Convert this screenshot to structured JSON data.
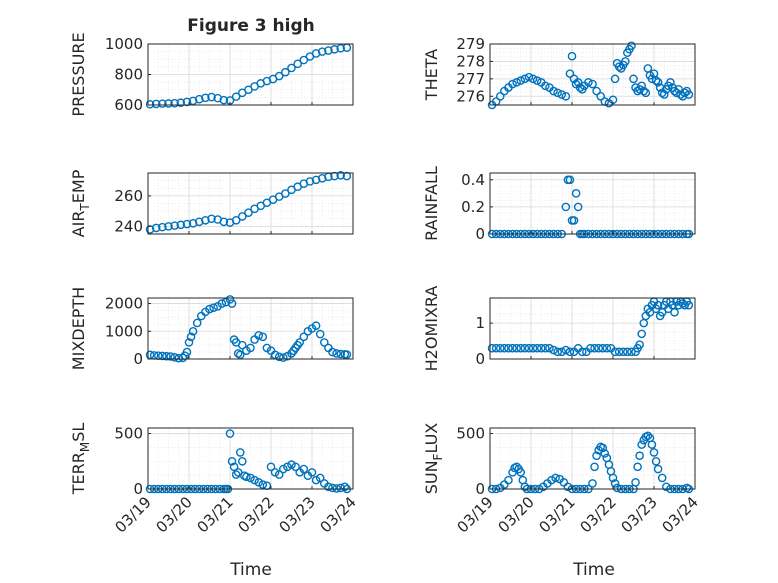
{
  "figure_title": "Figure 3 high",
  "x_axis_label": "Time",
  "x_tick_labels": [
    "03/19",
    "03/20",
    "03/21",
    "03/22",
    "03/23",
    "03/24"
  ],
  "marker_color": "#0072BD",
  "chart_data": [
    {
      "type": "scatter",
      "ylabel": "PRESSURE",
      "title": "Figure 3 high",
      "xlabel": "",
      "xlim": [
        0,
        5
      ],
      "ylim": [
        600,
        1000
      ],
      "yticks": [
        600,
        800,
        1000
      ],
      "grid": true,
      "x": [
        0.05,
        0.2,
        0.35,
        0.5,
        0.65,
        0.8,
        0.95,
        1.1,
        1.25,
        1.4,
        1.55,
        1.7,
        1.85,
        2.0,
        2.15,
        2.3,
        2.45,
        2.6,
        2.75,
        2.9,
        3.05,
        3.2,
        3.35,
        3.5,
        3.65,
        3.8,
        3.95,
        4.1,
        4.25,
        4.4,
        4.55,
        4.7,
        4.85
      ],
      "y": [
        605,
        607,
        609,
        610,
        612,
        615,
        620,
        627,
        638,
        647,
        652,
        645,
        632,
        630,
        655,
        680,
        700,
        722,
        742,
        757,
        770,
        790,
        815,
        843,
        870,
        895,
        918,
        938,
        950,
        957,
        965,
        972,
        976
      ]
    },
    {
      "type": "scatter",
      "ylabel": "THETA",
      "title": "",
      "xlabel": "",
      "xlim": [
        0,
        5
      ],
      "ylim": [
        275.5,
        279
      ],
      "yticks": [
        276,
        277,
        278,
        279
      ],
      "grid": true,
      "x": [
        0.05,
        0.15,
        0.25,
        0.35,
        0.45,
        0.55,
        0.65,
        0.75,
        0.85,
        0.95,
        1.05,
        1.15,
        1.25,
        1.35,
        1.45,
        1.55,
        1.65,
        1.75,
        1.85,
        1.95,
        2.0,
        2.05,
        2.1,
        2.15,
        2.2,
        2.25,
        2.3,
        2.4,
        2.5,
        2.6,
        2.7,
        2.8,
        2.9,
        3.0,
        3.05,
        3.1,
        3.15,
        3.2,
        3.25,
        3.3,
        3.35,
        3.4,
        3.45,
        3.5,
        3.55,
        3.6,
        3.65,
        3.7,
        3.75,
        3.8,
        3.85,
        3.9,
        3.95,
        4.0,
        4.05,
        4.1,
        4.15,
        4.2,
        4.25,
        4.3,
        4.35,
        4.4,
        4.45,
        4.5,
        4.55,
        4.6,
        4.65,
        4.7,
        4.75,
        4.8,
        4.85
      ],
      "y": [
        275.5,
        275.7,
        276.0,
        276.3,
        276.5,
        276.7,
        276.8,
        276.9,
        277.0,
        277.1,
        277.0,
        276.9,
        276.8,
        276.6,
        276.5,
        276.3,
        276.2,
        276.1,
        276.0,
        277.3,
        278.3,
        277.0,
        276.7,
        276.8,
        276.5,
        276.4,
        276.6,
        276.8,
        276.7,
        276.3,
        276.0,
        275.7,
        275.6,
        275.8,
        277.0,
        277.9,
        277.7,
        277.6,
        277.8,
        278.0,
        278.5,
        278.7,
        278.9,
        277.0,
        276.5,
        276.3,
        276.4,
        276.6,
        276.3,
        276.2,
        277.6,
        277.2,
        277.0,
        277.3,
        276.9,
        276.8,
        276.5,
        276.2,
        276.1,
        276.4,
        276.6,
        276.8,
        276.5,
        276.3,
        276.2,
        276.4,
        276.1,
        276.0,
        276.2,
        276.3,
        276.1
      ]
    },
    {
      "type": "scatter",
      "ylabel": "AIR_TEMP",
      "title": "",
      "xlabel": "",
      "xlim": [
        0,
        5
      ],
      "ylim": [
        235,
        275
      ],
      "yticks": [
        240,
        260
      ],
      "grid": true,
      "x": [
        0.05,
        0.2,
        0.35,
        0.5,
        0.65,
        0.8,
        0.95,
        1.1,
        1.25,
        1.4,
        1.55,
        1.7,
        1.85,
        2.0,
        2.15,
        2.3,
        2.45,
        2.6,
        2.75,
        2.9,
        3.05,
        3.2,
        3.35,
        3.5,
        3.65,
        3.8,
        3.95,
        4.1,
        4.25,
        4.4,
        4.55,
        4.7,
        4.85
      ],
      "y": [
        238,
        239,
        239.5,
        240,
        240.5,
        241,
        241.5,
        242,
        243,
        244,
        245,
        244.5,
        243,
        242.5,
        244,
        246.5,
        249,
        251.5,
        253.5,
        255.5,
        257.5,
        259.5,
        261.5,
        264,
        266,
        268,
        269.5,
        270.5,
        271.5,
        272.5,
        273,
        273.5,
        273
      ]
    },
    {
      "type": "scatter",
      "ylabel": "RAINFALL",
      "title": "",
      "xlabel": "",
      "xlim": [
        0,
        5
      ],
      "ylim": [
        0,
        0.45
      ],
      "yticks": [
        0,
        0.2,
        0.4
      ],
      "grid": true,
      "x": [
        0.05,
        0.15,
        0.25,
        0.35,
        0.45,
        0.55,
        0.65,
        0.75,
        0.85,
        0.95,
        1.05,
        1.15,
        1.25,
        1.35,
        1.45,
        1.55,
        1.65,
        1.75,
        1.85,
        1.9,
        1.95,
        2.0,
        2.05,
        2.1,
        2.15,
        2.2,
        2.25,
        2.3,
        2.4,
        2.5,
        2.6,
        2.7,
        2.8,
        2.9,
        3.0,
        3.1,
        3.2,
        3.3,
        3.4,
        3.5,
        3.6,
        3.7,
        3.8,
        3.9,
        4.0,
        4.1,
        4.2,
        4.3,
        4.4,
        4.5,
        4.6,
        4.7,
        4.8,
        4.85
      ],
      "y": [
        0,
        0,
        0,
        0,
        0,
        0,
        0,
        0,
        0,
        0,
        0,
        0,
        0,
        0,
        0,
        0,
        0,
        0,
        0.2,
        0.4,
        0.4,
        0.1,
        0.1,
        0.3,
        0.2,
        0,
        0,
        0,
        0,
        0,
        0,
        0,
        0,
        0,
        0,
        0,
        0,
        0,
        0,
        0,
        0,
        0,
        0,
        0,
        0,
        0,
        0,
        0,
        0,
        0,
        0,
        0,
        0,
        0
      ]
    },
    {
      "type": "scatter",
      "ylabel": "MIXDEPTH",
      "title": "",
      "xlabel": "",
      "xlim": [
        0,
        5
      ],
      "ylim": [
        0,
        2200
      ],
      "yticks": [
        0,
        1000,
        2000
      ],
      "grid": true,
      "x": [
        0.05,
        0.15,
        0.25,
        0.35,
        0.45,
        0.55,
        0.65,
        0.75,
        0.85,
        0.9,
        0.95,
        1.0,
        1.05,
        1.1,
        1.2,
        1.3,
        1.4,
        1.5,
        1.6,
        1.7,
        1.8,
        1.9,
        2.0,
        2.05,
        2.1,
        2.15,
        2.2,
        2.25,
        2.3,
        2.4,
        2.5,
        2.6,
        2.7,
        2.8,
        2.9,
        3.0,
        3.1,
        3.2,
        3.3,
        3.4,
        3.5,
        3.55,
        3.6,
        3.65,
        3.7,
        3.8,
        3.9,
        4.0,
        4.1,
        4.2,
        4.3,
        4.4,
        4.5,
        4.6,
        4.7,
        4.8,
        4.85
      ],
      "y": [
        150,
        130,
        120,
        110,
        100,
        90,
        60,
        30,
        40,
        120,
        250,
        600,
        800,
        1000,
        1300,
        1550,
        1700,
        1800,
        1850,
        1900,
        2000,
        2050,
        2150,
        2000,
        700,
        600,
        200,
        150,
        500,
        300,
        400,
        700,
        850,
        800,
        400,
        300,
        150,
        80,
        50,
        100,
        200,
        300,
        400,
        500,
        600,
        800,
        1000,
        1100,
        1200,
        900,
        600,
        400,
        250,
        200,
        180,
        170,
        160
      ]
    },
    {
      "type": "scatter",
      "ylabel": "H2OMIXRA",
      "title": "",
      "xlabel": "",
      "xlim": [
        0,
        5
      ],
      "ylim": [
        0,
        1.7
      ],
      "yticks": [
        0,
        1
      ],
      "grid": true,
      "x": [
        0.05,
        0.15,
        0.25,
        0.35,
        0.45,
        0.55,
        0.65,
        0.75,
        0.85,
        0.95,
        1.05,
        1.15,
        1.25,
        1.35,
        1.45,
        1.55,
        1.65,
        1.75,
        1.85,
        1.95,
        2.05,
        2.15,
        2.25,
        2.35,
        2.45,
        2.55,
        2.65,
        2.75,
        2.85,
        2.95,
        3.05,
        3.15,
        3.25,
        3.35,
        3.45,
        3.55,
        3.6,
        3.65,
        3.7,
        3.75,
        3.8,
        3.85,
        3.9,
        3.95,
        4.0,
        4.05,
        4.1,
        4.15,
        4.2,
        4.25,
        4.3,
        4.35,
        4.4,
        4.45,
        4.5,
        4.55,
        4.6,
        4.65,
        4.7,
        4.75,
        4.8,
        4.85
      ],
      "y": [
        0.3,
        0.3,
        0.3,
        0.3,
        0.3,
        0.3,
        0.3,
        0.3,
        0.3,
        0.3,
        0.3,
        0.3,
        0.3,
        0.3,
        0.3,
        0.25,
        0.2,
        0.2,
        0.25,
        0.2,
        0.2,
        0.3,
        0.2,
        0.2,
        0.3,
        0.3,
        0.3,
        0.3,
        0.3,
        0.3,
        0.2,
        0.2,
        0.2,
        0.2,
        0.2,
        0.2,
        0.3,
        0.4,
        0.7,
        1.0,
        1.2,
        1.4,
        1.3,
        1.5,
        1.6,
        1.4,
        1.5,
        1.2,
        1.3,
        1.5,
        1.6,
        1.4,
        1.6,
        1.5,
        1.3,
        1.6,
        1.5,
        1.6,
        1.55,
        1.5,
        1.6,
        1.5
      ]
    },
    {
      "type": "scatter",
      "ylabel": "TERR_MSL",
      "title": "",
      "xlabel": "",
      "xlim": [
        0,
        5
      ],
      "ylim": [
        0,
        550
      ],
      "yticks": [
        0,
        500
      ],
      "grid": true,
      "x": [
        0.05,
        0.15,
        0.25,
        0.35,
        0.45,
        0.55,
        0.65,
        0.75,
        0.85,
        0.95,
        1.05,
        1.15,
        1.25,
        1.35,
        1.45,
        1.55,
        1.65,
        1.75,
        1.85,
        1.9,
        1.95,
        2.0,
        2.05,
        2.1,
        2.15,
        2.2,
        2.25,
        2.3,
        2.35,
        2.4,
        2.5,
        2.6,
        2.7,
        2.8,
        2.9,
        3.0,
        3.1,
        3.2,
        3.3,
        3.4,
        3.5,
        3.6,
        3.7,
        3.8,
        3.9,
        4.0,
        4.1,
        4.2,
        4.3,
        4.4,
        4.5,
        4.6,
        4.7,
        4.8,
        4.85
      ],
      "y": [
        0,
        0,
        0,
        0,
        0,
        0,
        0,
        0,
        0,
        0,
        0,
        0,
        0,
        0,
        0,
        0,
        0,
        0,
        0,
        0,
        0,
        500,
        250,
        200,
        130,
        150,
        330,
        250,
        120,
        110,
        100,
        80,
        60,
        40,
        30,
        200,
        150,
        130,
        180,
        200,
        220,
        200,
        150,
        180,
        120,
        150,
        80,
        100,
        50,
        20,
        10,
        5,
        10,
        20,
        0
      ]
    },
    {
      "type": "scatter",
      "ylabel": "SUN_FLUX",
      "title": "",
      "xlabel": "",
      "xlim": [
        0,
        5
      ],
      "ylim": [
        0,
        550
      ],
      "yticks": [
        0,
        500
      ],
      "grid": true,
      "x": [
        0.05,
        0.15,
        0.25,
        0.35,
        0.45,
        0.55,
        0.6,
        0.65,
        0.7,
        0.75,
        0.8,
        0.85,
        0.9,
        1.0,
        1.1,
        1.2,
        1.3,
        1.4,
        1.5,
        1.6,
        1.7,
        1.8,
        1.9,
        2.0,
        2.1,
        2.2,
        2.3,
        2.4,
        2.5,
        2.55,
        2.6,
        2.65,
        2.7,
        2.75,
        2.8,
        2.85,
        2.9,
        2.95,
        3.0,
        3.05,
        3.1,
        3.2,
        3.3,
        3.4,
        3.5,
        3.55,
        3.6,
        3.65,
        3.7,
        3.75,
        3.8,
        3.85,
        3.9,
        3.95,
        4.0,
        4.05,
        4.1,
        4.2,
        4.3,
        4.4,
        4.5,
        4.6,
        4.7,
        4.8,
        4.85
      ],
      "y": [
        0,
        0,
        10,
        40,
        80,
        150,
        190,
        200,
        180,
        150,
        80,
        20,
        0,
        0,
        0,
        0,
        20,
        50,
        80,
        100,
        90,
        60,
        20,
        0,
        0,
        0,
        0,
        0,
        50,
        200,
        300,
        350,
        380,
        370,
        320,
        280,
        220,
        160,
        100,
        50,
        10,
        0,
        0,
        0,
        0,
        60,
        200,
        300,
        400,
        440,
        470,
        480,
        460,
        400,
        330,
        250,
        180,
        100,
        20,
        0,
        0,
        0,
        0,
        10,
        0
      ]
    }
  ]
}
